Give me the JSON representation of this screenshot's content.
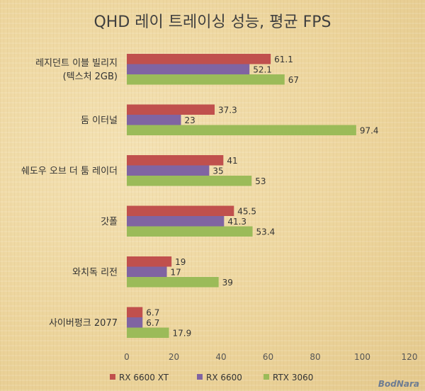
{
  "chart_data": {
    "type": "bar",
    "orientation": "horizontal",
    "title": "QHD 레이 트레이싱 성능, 평균 FPS",
    "categories": [
      "레지던트 이블 빌리지\n(텍스처 2GB)",
      "둠 이터널",
      "쉐도우 오브 더 툼 레이더",
      "갓폴",
      "와치독 리전",
      "사이버펑크 2077"
    ],
    "series": [
      {
        "name": "RX 6600 XT",
        "color": "#c0504d",
        "values": [
          61.1,
          37.3,
          41,
          45.5,
          19,
          6.7
        ]
      },
      {
        "name": "RX 6600",
        "color": "#8064a2",
        "values": [
          52.1,
          23,
          35,
          41.3,
          17,
          6.7
        ]
      },
      {
        "name": "RTX 3060",
        "color": "#9bbb59",
        "values": [
          67,
          97.4,
          53,
          53.4,
          39,
          17.9
        ]
      }
    ],
    "xlim": [
      0,
      120
    ],
    "xticks": [
      0,
      20,
      40,
      60,
      80,
      100,
      120
    ],
    "grid": false,
    "legend_position": "bottom"
  },
  "watermark": "BodNara"
}
